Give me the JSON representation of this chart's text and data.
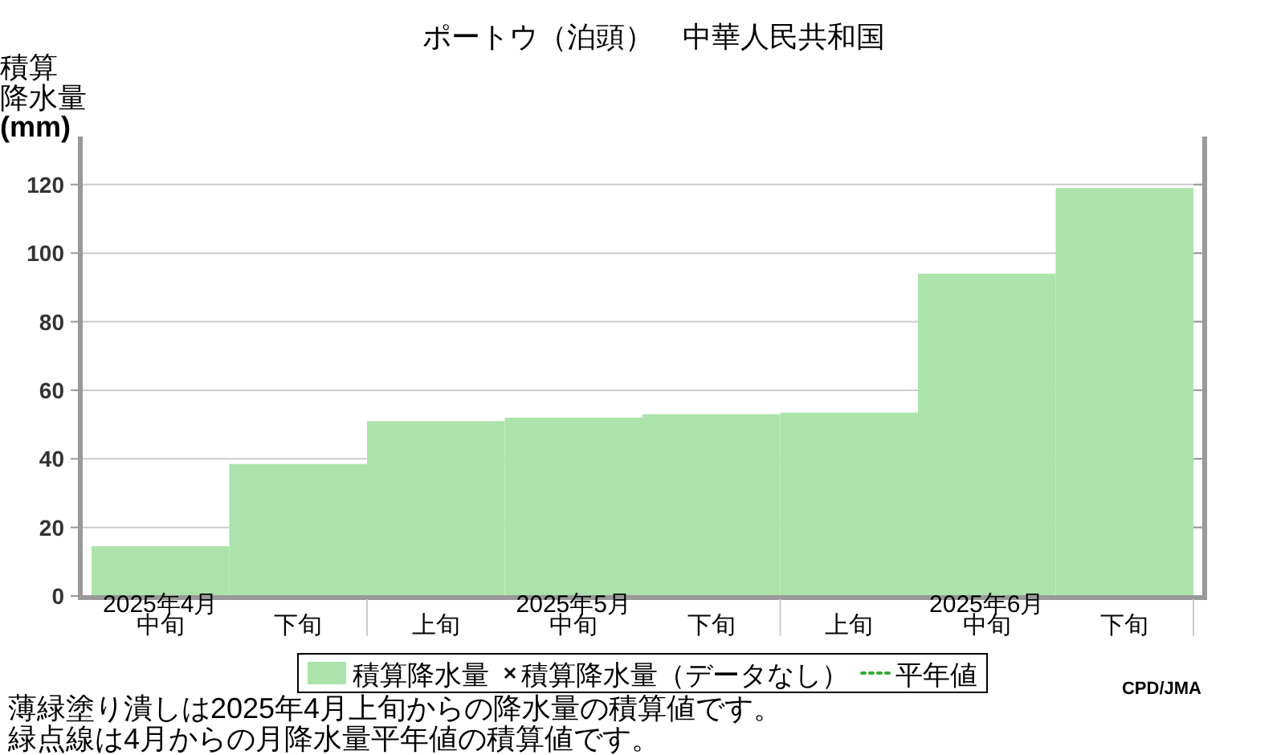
{
  "chart_data": {
    "type": "bar",
    "title": "ポートウ（泊頭）　中華人民共和国",
    "ylabel": "積算降水量(mm)",
    "categories": [
      "2025年4月中旬",
      "下旬",
      "上旬",
      "2025年5月中旬",
      "下旬",
      "上旬",
      "2025年6月中旬",
      "下旬"
    ],
    "series": [
      {
        "name": "積算降水量",
        "color": "#abe3ab",
        "values": [
          14.5,
          38.5,
          51,
          52,
          53,
          53.5,
          94,
          119
        ]
      },
      {
        "name": "積算降水量（データなし）",
        "type": "scatter",
        "marker": "cross",
        "color": "#000000",
        "values": [
          null,
          null,
          null,
          null,
          null,
          null,
          null,
          null
        ]
      },
      {
        "name": "平年値",
        "type": "line",
        "line_style": "dotted",
        "color": "#33aa33",
        "values": [
          null,
          null,
          null,
          null,
          null,
          null,
          null,
          null
        ]
      }
    ],
    "ylim": [
      0,
      134
    ],
    "yticks": [
      0,
      20,
      40,
      60,
      80,
      100,
      120
    ],
    "grid": "y",
    "legend": "bottom",
    "annotations": [
      "薄緑塗り潰しは2025年4月上旬からの降水量の積算値です。",
      "緑点線は4月からの月降水量平年値の積算値です。",
      "CPD/JMA"
    ]
  }
}
